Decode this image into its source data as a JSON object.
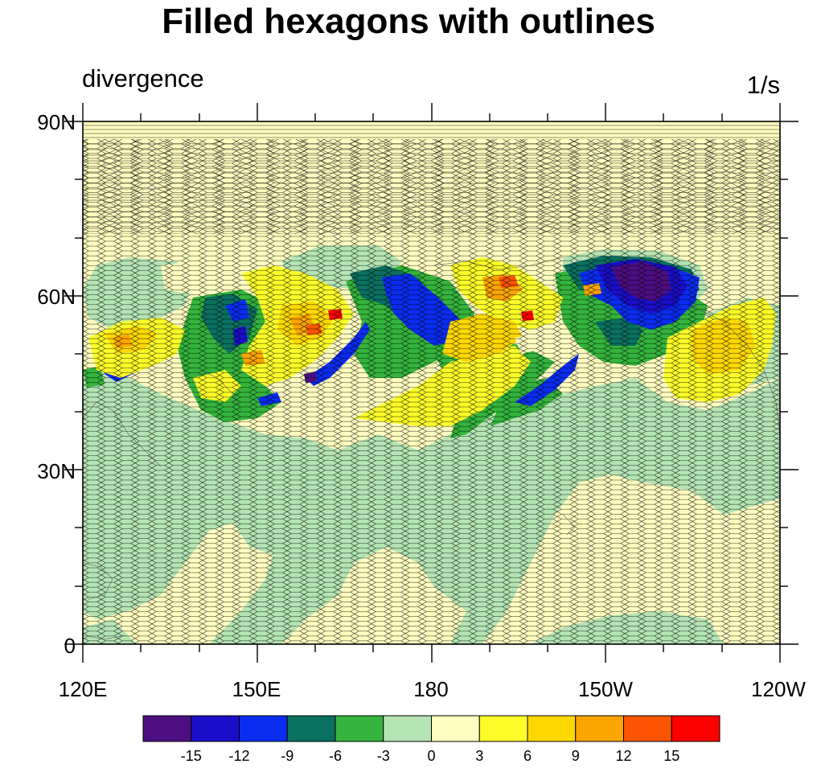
{
  "title": "Filled hexagons with outlines",
  "left_string": "divergence",
  "right_string": "1/s",
  "lat_labels": [
    "90N",
    "60N",
    "30N",
    "0"
  ],
  "lon_labels": [
    "120E",
    "150E",
    "180",
    "150W",
    "120W"
  ],
  "colorbar": {
    "colors": [
      "#4c0e80",
      "#1a0ec8",
      "#0a2cf0",
      "#0a7060",
      "#34b43c",
      "#b4e4b4",
      "#fffcc0",
      "#fcfc28",
      "#fcd800",
      "#fca400",
      "#fc5400",
      "#fc0000"
    ],
    "labels": [
      "-15",
      "-12",
      "-9",
      "-6",
      "-3",
      "0",
      "3",
      "6",
      "9",
      "12",
      "15"
    ]
  }
}
